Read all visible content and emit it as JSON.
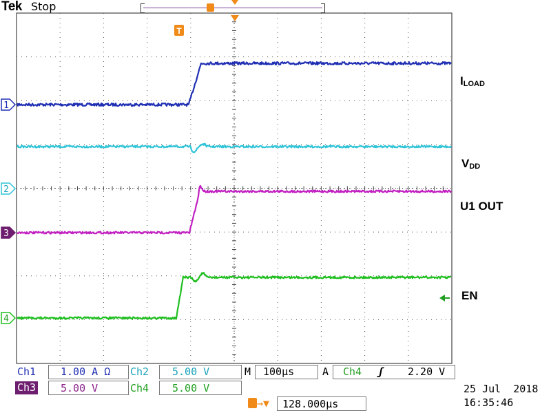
{
  "header": {
    "brand": "Tek",
    "acq_state": "Stop"
  },
  "channels": [
    {
      "marker": "1",
      "color": "#1f2fb3"
    },
    {
      "marker": "2",
      "color": "#2fc4d8"
    },
    {
      "marker": "3",
      "color": "#c21fc2"
    },
    {
      "marker": "4",
      "color": "#1fbf1f"
    }
  ],
  "signal_labels": {
    "iload_main": "I",
    "iload_sub": "LOAD",
    "vdd_main": "V",
    "vdd_sub": "DD",
    "u1out": "U1 OUT",
    "en": "EN"
  },
  "trigger_marker": "T",
  "readout": {
    "ch1_label": "Ch1",
    "ch1_value": "1.00 A Ω",
    "ch2_label": "Ch2",
    "ch2_value": "5.00 V",
    "ch3_label": "Ch3",
    "ch3_value": "5.00 V",
    "ch4_label": "Ch4",
    "ch4_value": "5.00 V",
    "timebase_label": "M",
    "timebase_value": "100µs",
    "trig_label": "A",
    "trig_source": "Ch4",
    "trig_slope": "ʃ",
    "trig_level": "2.20 V",
    "trig_pos_arrow": "→▼",
    "trig_pos_value": "128.000µs",
    "date": "25 Jul  2018",
    "time": "16:35:46"
  }
}
